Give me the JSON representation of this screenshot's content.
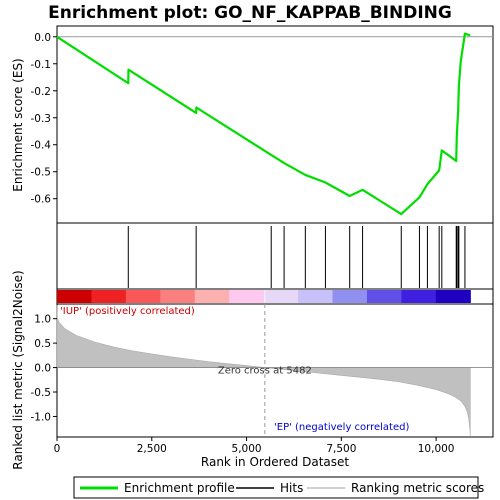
{
  "chart_data": [
    {
      "type": "line",
      "title": "Enrichment plot: GO_NF_KAPPAB_BINDING",
      "ylabel": "Enrichment score (ES)",
      "ylim": [
        -0.69,
        0.04
      ],
      "xlim": [
        0,
        11500
      ],
      "yticks": [
        "0.0",
        "-0.1",
        "-0.2",
        "-0.3",
        "-0.4",
        "-0.5",
        "-0.6"
      ],
      "ytick_values": [
        0.0,
        -0.1,
        -0.2,
        -0.3,
        -0.4,
        -0.5,
        -0.6
      ],
      "grid": false,
      "series": [
        {
          "name": "Enrichment profile",
          "color": "#00dd00",
          "x": [
            0,
            1880,
            1885,
            3670,
            3675,
            5650,
            5990,
            6550,
            7080,
            7720,
            8060,
            9080,
            9560,
            9770,
            10080,
            10150,
            10530,
            10545,
            10580,
            10600,
            10650,
            10760,
            10800,
            10900
          ],
          "y": [
            0.0,
            -0.172,
            -0.122,
            -0.282,
            -0.262,
            -0.438,
            -0.468,
            -0.512,
            -0.54,
            -0.59,
            -0.567,
            -0.657,
            -0.595,
            -0.546,
            -0.495,
            -0.421,
            -0.46,
            -0.367,
            -0.276,
            -0.182,
            -0.09,
            0.012,
            0.01,
            0.005
          ]
        }
      ]
    },
    {
      "type": "scatter",
      "series": [
        {
          "name": "Hits",
          "color": "#000000",
          "x": [
            1880,
            3670,
            5650,
            5990,
            6550,
            7080,
            7720,
            8060,
            9080,
            9560,
            9770,
            10080,
            10150,
            10530,
            10545,
            10580,
            10600,
            10760
          ]
        }
      ]
    },
    {
      "type": "area",
      "title": "",
      "xlabel": "Rank in Ordered Dataset",
      "ylabel": "Ranked list metric (Signal2Noise)",
      "xlim": [
        0,
        11500
      ],
      "ylim": [
        -1.42,
        1.3
      ],
      "xticks": [
        "0",
        "2,500",
        "5,000",
        "7,500",
        "10,000"
      ],
      "xtick_values": [
        0,
        2500,
        5000,
        7500,
        10000
      ],
      "yticks": [
        "1.0",
        "0.5",
        "0.0",
        "-0.5",
        "-1.0"
      ],
      "ytick_values": [
        1.0,
        0.5,
        0.0,
        -0.5,
        -1.0
      ],
      "zero_cross": 5482,
      "series": [
        {
          "name": "Ranking metric scores",
          "color": "#c0c0c0",
          "x": [
            0,
            10,
            60,
            200,
            500,
            1000,
            1500,
            2000,
            2500,
            3000,
            3500,
            4000,
            4500,
            5000,
            5482,
            6000,
            6500,
            7000,
            7500,
            8000,
            8500,
            9000,
            9500,
            10000,
            10300,
            10500,
            10650,
            10750,
            10820,
            10860,
            10890,
            10900
          ],
          "y": [
            1.28,
            1.0,
            0.92,
            0.8,
            0.66,
            0.52,
            0.42,
            0.34,
            0.28,
            0.22,
            0.17,
            0.12,
            0.08,
            0.04,
            0.0,
            -0.04,
            -0.08,
            -0.12,
            -0.16,
            -0.2,
            -0.24,
            -0.29,
            -0.36,
            -0.45,
            -0.53,
            -0.6,
            -0.68,
            -0.78,
            -0.9,
            -1.05,
            -1.25,
            -1.4
          ]
        }
      ],
      "annotations": {
        "positive": "'IUP' (positively correlated)",
        "zero": "Zero cross at 5482",
        "negative": "'EP' (negatively correlated)"
      }
    }
  ],
  "heat_bar": {
    "stops": [
      "#cc0000",
      "#ee2222",
      "#f85858",
      "#fa8080",
      "#fcb0b0",
      "#ffc8ee",
      "#e8d8f8",
      "#c8c0f8",
      "#9090f0",
      "#6050e8",
      "#4020e0",
      "#2000c0"
    ]
  },
  "legend": {
    "items": [
      {
        "label": "Enrichment profile",
        "color": "#00dd00"
      },
      {
        "label": "Hits",
        "color": "#000000"
      },
      {
        "label": "Ranking metric scores",
        "color": "#c0c0c0"
      }
    ]
  }
}
